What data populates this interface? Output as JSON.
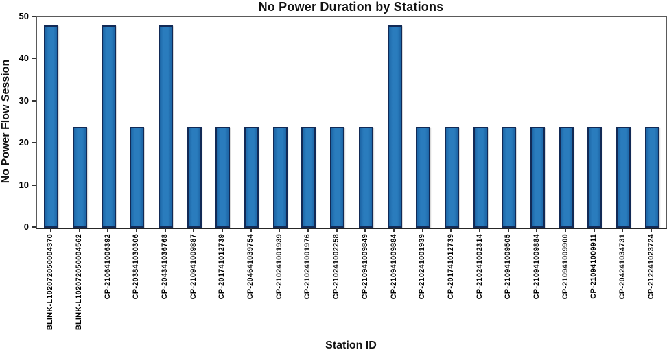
{
  "chart_data": {
    "type": "bar",
    "title": "No Power Duration by Stations",
    "xlabel": "Station ID",
    "ylabel": "No Power Flow Session",
    "ylim": [
      0,
      50
    ],
    "yticks": [
      0,
      10,
      20,
      30,
      40,
      50
    ],
    "grid": false,
    "legend": "none",
    "bar_fill_color": "#2a7cbd",
    "bar_edge_color": "#122a56",
    "categories": [
      "BLINK-L102072050004370",
      "BLINK-L102072050004562",
      "CP-210641006392",
      "CP-203841030306",
      "CP-204341036768",
      "CP-210941009887",
      "CP-201741012739",
      "CP-204641039754",
      "CP-210241001939",
      "CP-210241001976",
      "CP-210241002258",
      "CP-210941009849",
      "CP-210941009884",
      "CP-210241001939",
      "CP-201741012739",
      "CP-210241002314",
      "CP-210941009505",
      "CP-210941009884",
      "CP-210941009900",
      "CP-210941009911",
      "CP-204241034731",
      "CP-212241023724"
    ],
    "values": [
      48,
      24,
      48,
      24,
      48,
      24,
      24,
      24,
      24,
      24,
      24,
      24,
      48,
      24,
      24,
      24,
      24,
      24,
      24,
      24,
      24,
      24
    ]
  }
}
